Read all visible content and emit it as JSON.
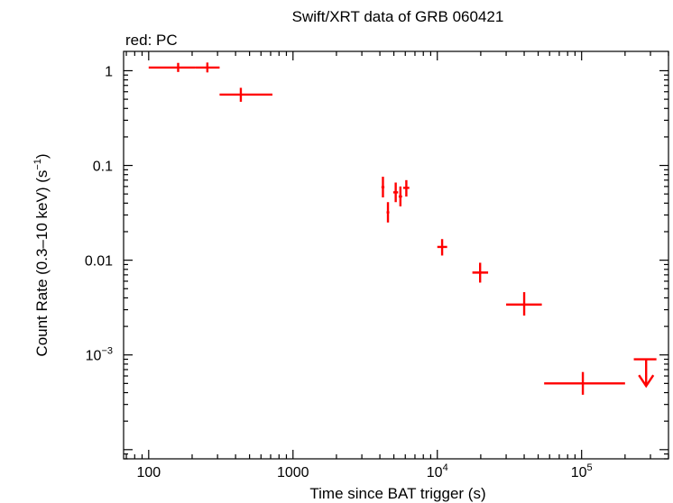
{
  "chart_data": {
    "type": "scatter",
    "title": "Swift/XRT data of GRB 060421",
    "subtitle": "red: PC",
    "xlabel": "Time since BAT trigger (s)",
    "ylabel_main": "Count Rate (0.3–10 keV) (s",
    "ylabel_sup": "−1",
    "ylabel_close": ")",
    "x_scale": "log",
    "y_scale": "log",
    "xlim": [
      67,
      400000
    ],
    "ylim": [
      8e-05,
      1.6
    ],
    "grid": false,
    "series_color": "#ff0000",
    "x_ticks": [
      {
        "value": 100,
        "mantissa": "100",
        "sup": ""
      },
      {
        "value": 1000,
        "mantissa": "1000",
        "sup": ""
      },
      {
        "value": 10000,
        "mantissa": "10",
        "sup": "4"
      },
      {
        "value": 100000,
        "mantissa": "10",
        "sup": "5"
      }
    ],
    "y_ticks": [
      {
        "value": 1,
        "mantissa": "1",
        "sup": ""
      },
      {
        "value": 0.1,
        "mantissa": "0.1",
        "sup": ""
      },
      {
        "value": 0.01,
        "mantissa": "0.01",
        "sup": ""
      },
      {
        "value": 0.001,
        "mantissa": "10",
        "sup": "−3"
      }
    ],
    "points": [
      {
        "x": 160,
        "xlo": 100,
        "xhi": 210,
        "y": 1.08,
        "ylo": 0.97,
        "yhi": 1.21
      },
      {
        "x": 255,
        "xlo": 210,
        "xhi": 310,
        "y": 1.08,
        "ylo": 0.96,
        "yhi": 1.22
      },
      {
        "x": 435,
        "xlo": 310,
        "xhi": 720,
        "y": 0.56,
        "ylo": 0.47,
        "yhi": 0.66
      },
      {
        "x": 4200,
        "xlo": 4100,
        "xhi": 4300,
        "y": 0.059,
        "ylo": 0.046,
        "yhi": 0.076
      },
      {
        "x": 4550,
        "xlo": 4450,
        "xhi": 4650,
        "y": 0.032,
        "ylo": 0.025,
        "yhi": 0.041
      },
      {
        "x": 5150,
        "xlo": 4950,
        "xhi": 5350,
        "y": 0.052,
        "ylo": 0.041,
        "yhi": 0.066
      },
      {
        "x": 5550,
        "xlo": 5400,
        "xhi": 5700,
        "y": 0.047,
        "ylo": 0.037,
        "yhi": 0.06
      },
      {
        "x": 6100,
        "xlo": 5800,
        "xhi": 6400,
        "y": 0.058,
        "ylo": 0.047,
        "yhi": 0.07
      },
      {
        "x": 10800,
        "xlo": 10000,
        "xhi": 11700,
        "y": 0.0138,
        "ylo": 0.0112,
        "yhi": 0.0167
      },
      {
        "x": 19800,
        "xlo": 17500,
        "xhi": 22500,
        "y": 0.0074,
        "ylo": 0.0058,
        "yhi": 0.0094
      },
      {
        "x": 40000,
        "xlo": 30000,
        "xhi": 53000,
        "y": 0.0034,
        "ylo": 0.0026,
        "yhi": 0.0046
      },
      {
        "x": 102000,
        "xlo": 55000,
        "xhi": 200000,
        "y": 0.0005,
        "ylo": 0.00038,
        "yhi": 0.00066
      }
    ],
    "upper_limits": [
      {
        "x": 280000,
        "xlo": 230000,
        "xhi": 330000,
        "y": 0.0009,
        "arrow_to": 0.00047
      }
    ]
  }
}
